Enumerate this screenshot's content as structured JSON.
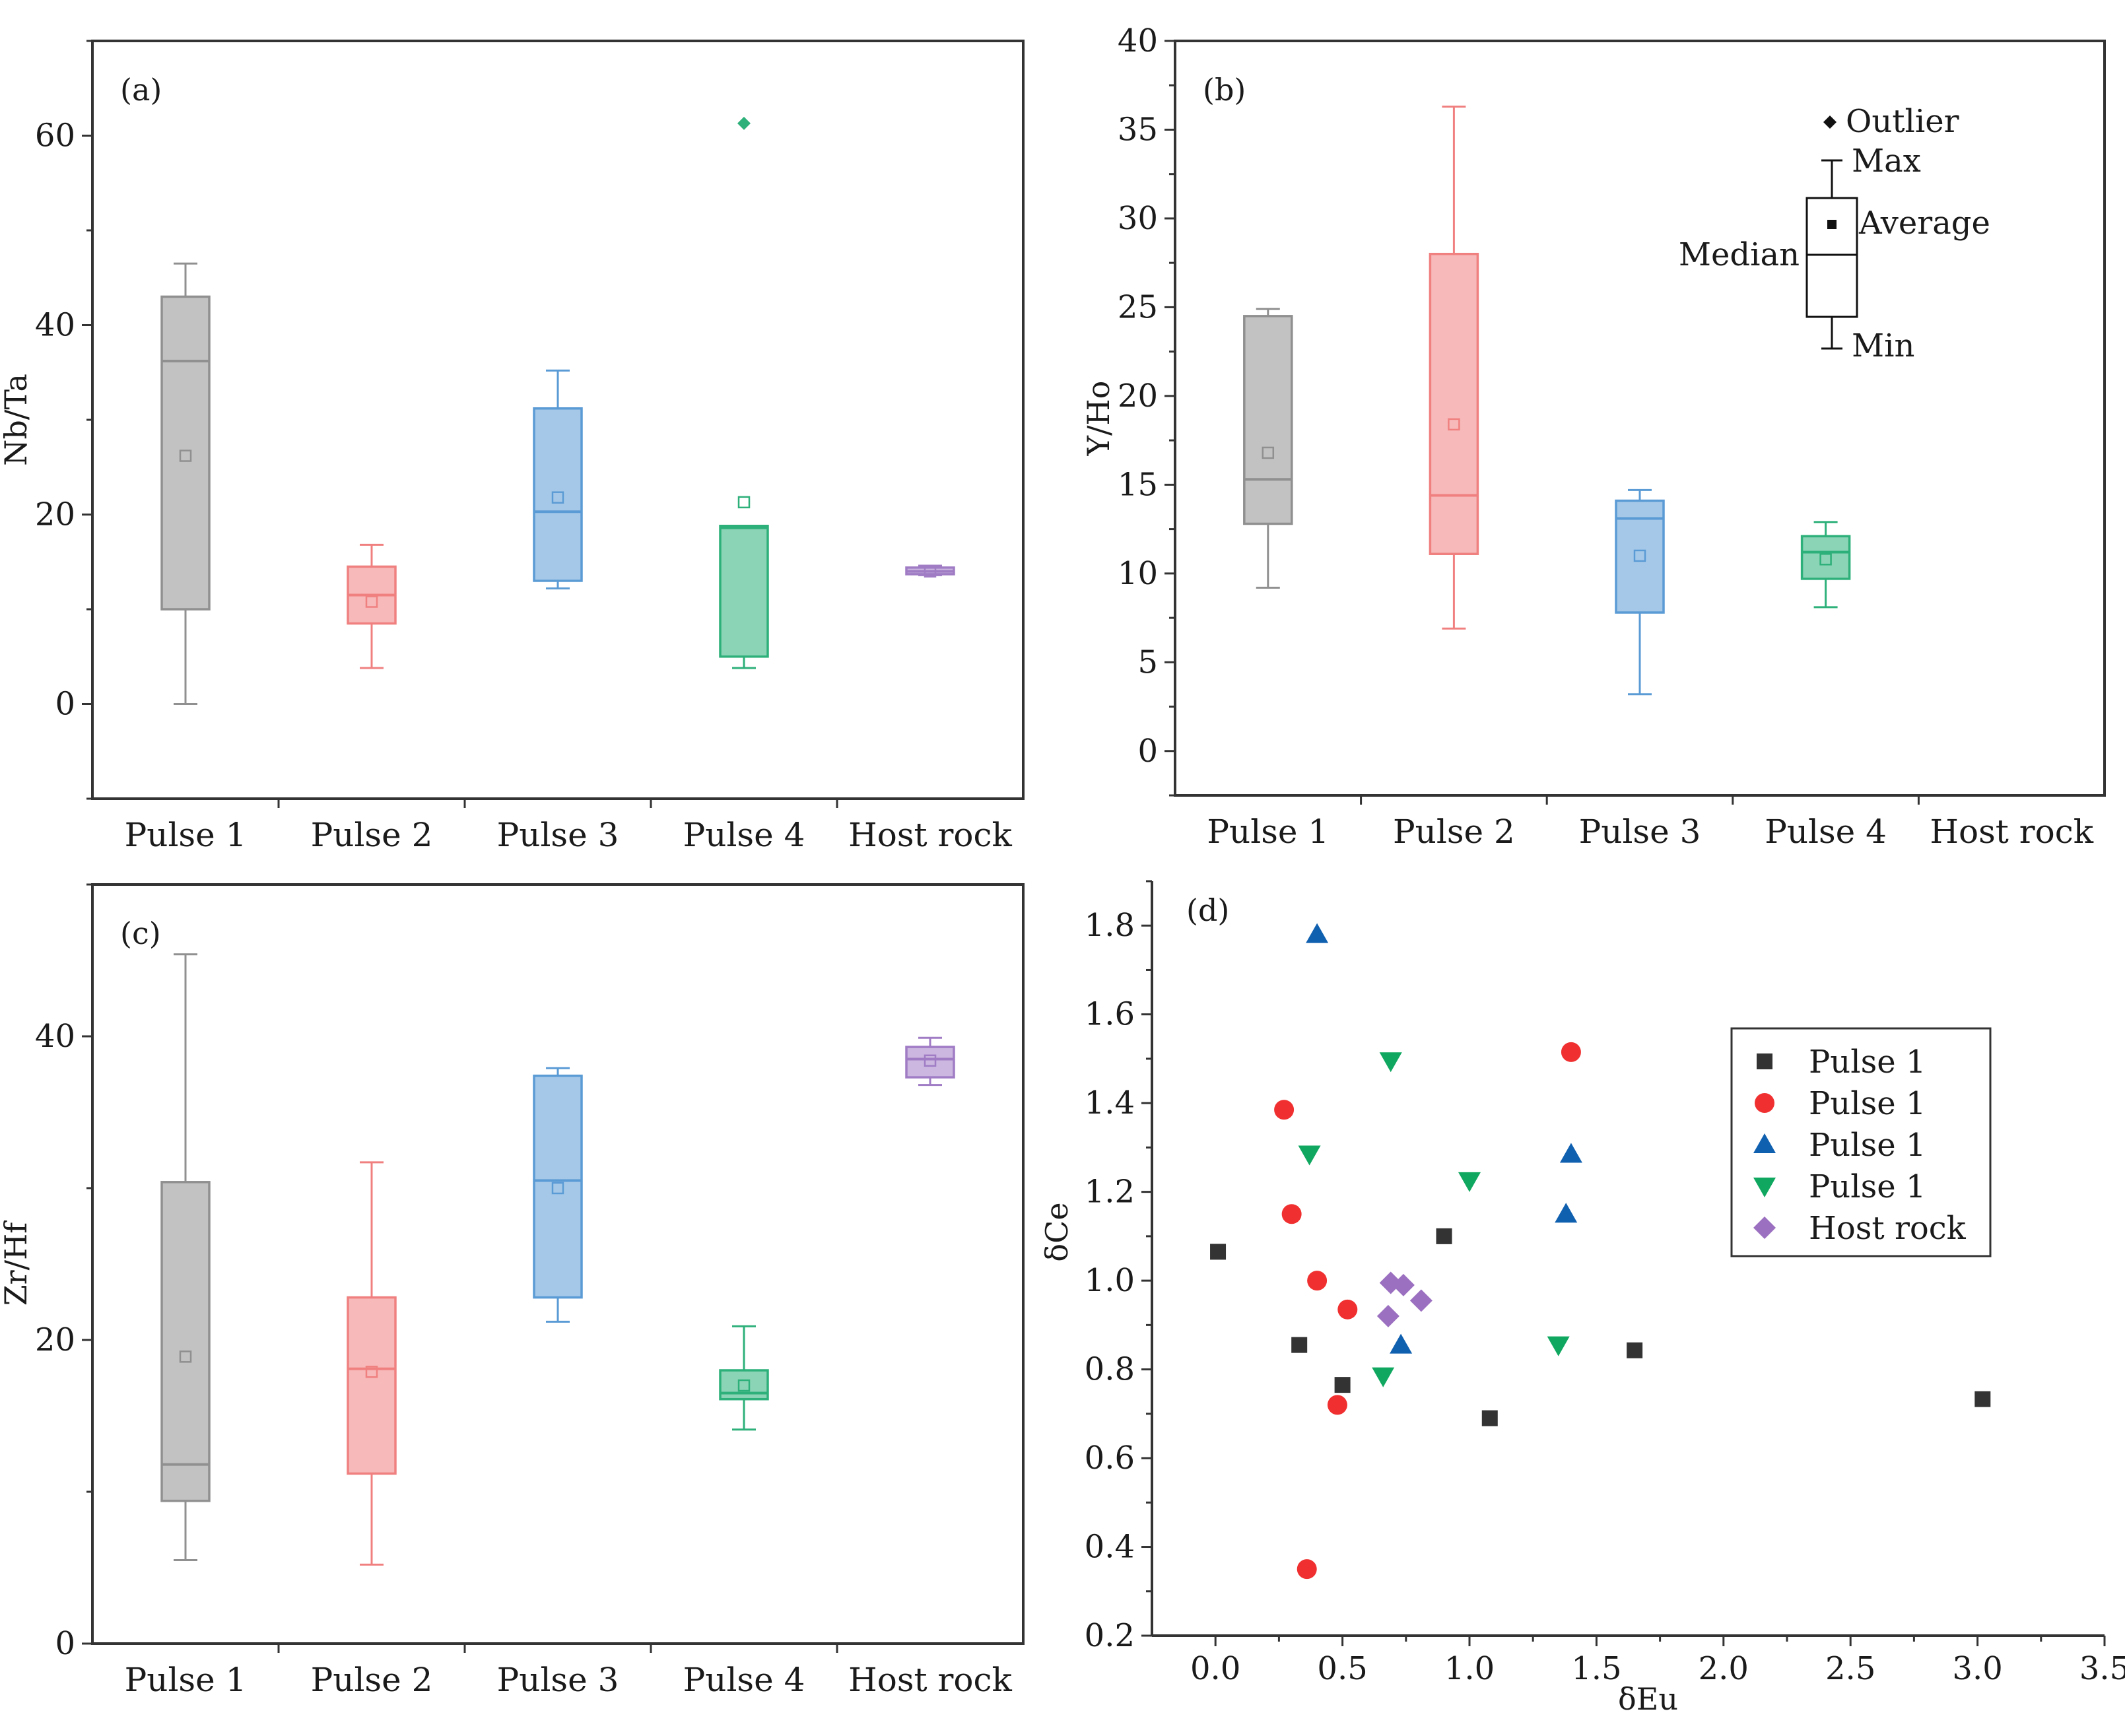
{
  "chart_data": [
    {
      "type": "box",
      "panel_label": "(a)",
      "ylabel": "Nb/Ta",
      "ylim": [
        -10,
        70
      ],
      "yticks": [
        0,
        20,
        40,
        60
      ],
      "categories": [
        "Pulse  1",
        "Pulse  2",
        "Pulse  3",
        "Pulse  4",
        "Host rock"
      ],
      "boxes": [
        {
          "category": "Pulse  1",
          "min": 0,
          "q1": 10,
          "median": 36.2,
          "q3": 43,
          "max": 46.5,
          "mean": 26.2,
          "outliers": [],
          "color": "#909090"
        },
        {
          "category": "Pulse  2",
          "min": 3.8,
          "q1": 8.5,
          "median": 11.5,
          "q3": 14.5,
          "max": 16.8,
          "mean": 10.8,
          "outliers": [],
          "color": "#f08080"
        },
        {
          "category": "Pulse  3",
          "min": 12.2,
          "q1": 13,
          "median": 20.3,
          "q3": 31.2,
          "max": 35.2,
          "mean": 21.8,
          "outliers": [],
          "color": "#5b9bd5"
        },
        {
          "category": "Pulse  4",
          "min": 3.8,
          "q1": 5,
          "median": 18.6,
          "q3": 18.8,
          "max": 18.8,
          "mean": 21.3,
          "outliers": [
            61.3
          ],
          "color": "#2eb07a"
        },
        {
          "category": "Host rock",
          "min": 13.6,
          "q1": 13.7,
          "median": 14,
          "q3": 14.4,
          "max": 14.6,
          "mean": 14,
          "outliers": [],
          "color": "#a07cc5"
        }
      ]
    },
    {
      "type": "box",
      "panel_label": "(b)",
      "ylabel": "Y/Ho",
      "ylim": [
        -2.5,
        40
      ],
      "yticks": [
        0,
        5,
        10,
        15,
        20,
        25,
        30,
        35,
        40
      ],
      "categories": [
        "Pulse  1",
        "Pulse  2",
        "Pulse  3",
        "Pulse  4",
        "Host rock"
      ],
      "boxes": [
        {
          "category": "Pulse  1",
          "min": 9.2,
          "q1": 12.8,
          "median": 15.3,
          "q3": 24.5,
          "max": 24.9,
          "mean": 16.8,
          "outliers": [],
          "color": "#909090"
        },
        {
          "category": "Pulse  2",
          "min": 6.9,
          "q1": 11.1,
          "median": 14.4,
          "q3": 28,
          "max": 36.3,
          "mean": 18.4,
          "outliers": [],
          "color": "#f08080"
        },
        {
          "category": "Pulse  3",
          "min": 3.2,
          "q1": 7.8,
          "median": 13.1,
          "q3": 14.1,
          "max": 14.7,
          "mean": 11,
          "outliers": [],
          "color": "#5b9bd5"
        },
        {
          "category": "Pulse  4",
          "min": 8.1,
          "q1": 9.7,
          "median": 11.2,
          "q3": 12.1,
          "max": 12.9,
          "mean": 10.8,
          "outliers": [],
          "color": "#2eb07a"
        }
      ],
      "legend": {
        "outlier": "Outlier",
        "max": "Max",
        "average": "Average",
        "median": "Median",
        "min": "Min"
      }
    },
    {
      "type": "box",
      "panel_label": "(c)",
      "ylabel": "Zr/Hf",
      "ylim": [
        0,
        50
      ],
      "yticks": [
        0,
        20,
        40
      ],
      "categories": [
        "Pulse  1",
        "Pulse  2",
        "Pulse  3",
        "Pulse  4",
        "Host rock"
      ],
      "boxes": [
        {
          "category": "Pulse  1",
          "min": 5.5,
          "q1": 9.4,
          "median": 11.8,
          "q3": 30.4,
          "max": 45.4,
          "mean": 18.9,
          "outliers": [],
          "color": "#909090"
        },
        {
          "category": "Pulse  2",
          "min": 5.2,
          "q1": 11.2,
          "median": 18.1,
          "q3": 22.8,
          "max": 31.7,
          "mean": 17.9,
          "outliers": [],
          "color": "#f08080"
        },
        {
          "category": "Pulse  3",
          "min": 21.2,
          "q1": 22.8,
          "median": 30.5,
          "q3": 37.4,
          "max": 37.9,
          "mean": 30,
          "outliers": [],
          "color": "#5b9bd5"
        },
        {
          "category": "Pulse  4",
          "min": 14.1,
          "q1": 16.1,
          "median": 16.5,
          "q3": 18,
          "max": 20.9,
          "mean": 17,
          "outliers": [],
          "color": "#2eb07a"
        },
        {
          "category": "Host rock",
          "min": 36.8,
          "q1": 37.3,
          "median": 38.5,
          "q3": 39.3,
          "max": 39.9,
          "mean": 38.4,
          "outliers": [],
          "color": "#a07cc5"
        }
      ]
    },
    {
      "type": "scatter",
      "panel_label": "(d)",
      "xlabel": "δEu",
      "ylabel": "δCe",
      "xlim": [
        -0.25,
        3.5
      ],
      "ylim": [
        0.2,
        1.9
      ],
      "xticks": [
        0.0,
        0.5,
        1.0,
        1.5,
        2.0,
        2.5,
        3.0,
        3.5
      ],
      "yticks": [
        0.2,
        0.4,
        0.6,
        0.8,
        1.0,
        1.2,
        1.4,
        1.6,
        1.8
      ],
      "series": [
        {
          "name": "Pulse  1",
          "marker": "square",
          "color": "#333333",
          "x": [
            0.01,
            0.33,
            0.5,
            0.9,
            1.08,
            1.65,
            3.02
          ],
          "y": [
            1.065,
            0.855,
            0.765,
            1.1,
            0.69,
            0.843,
            0.733
          ]
        },
        {
          "name": "Pulse  1",
          "marker": "circle",
          "color": "#f03030",
          "x": [
            0.27,
            0.3,
            0.4,
            0.52,
            0.48,
            0.36,
            1.4
          ],
          "y": [
            1.385,
            1.15,
            1.0,
            0.935,
            0.72,
            0.35,
            1.515
          ]
        },
        {
          "name": "Pulse  1",
          "marker": "triangle-up",
          "color": "#1060b0",
          "x": [
            0.4,
            0.73,
            1.4,
            1.38
          ],
          "y": [
            1.78,
            0.855,
            1.285,
            1.15
          ]
        },
        {
          "name": "Pulse  1",
          "marker": "triangle-down",
          "color": "#10a860",
          "x": [
            0.37,
            0.69,
            1.0,
            0.66,
            1.35
          ],
          "y": [
            1.285,
            1.495,
            1.225,
            0.785,
            0.855
          ]
        },
        {
          "name": "Host rock",
          "marker": "diamond",
          "color": "#9b70c0",
          "x": [
            0.69,
            0.74,
            0.81,
            0.68
          ],
          "y": [
            0.995,
            0.99,
            0.955,
            0.92
          ]
        }
      ]
    }
  ]
}
